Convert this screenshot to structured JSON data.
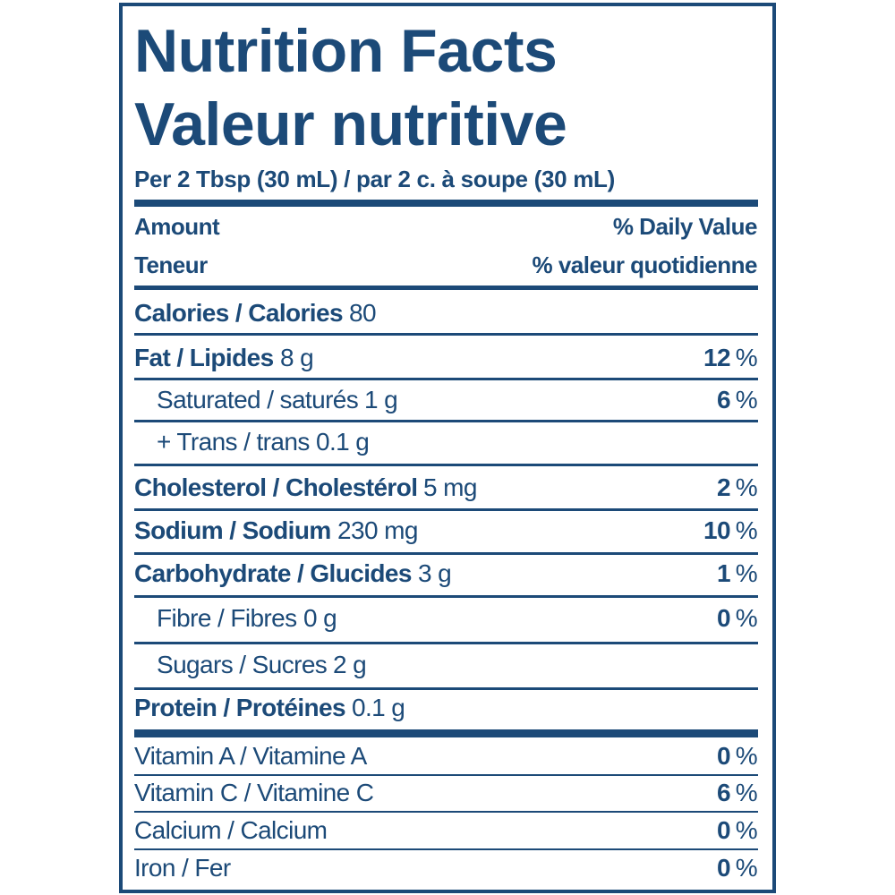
{
  "header": {
    "title": [
      "Nutrition Facts",
      "Valeur nutritive"
    ],
    "serving": "Per 2 Tbsp (30 mL) / par 2 c. à soupe (30 mL)",
    "amount": [
      "Amount",
      "Teneur"
    ],
    "daily_value": [
      "% Daily Value",
      "% valeur quotidienne"
    ]
  },
  "rows": [
    {
      "label": "Calories / Calories",
      "amount": "80",
      "style": "bold"
    },
    {
      "label": "Fat / Lipides",
      "amount": "8 g",
      "style": "bold",
      "dv": "12",
      "sign": "%"
    },
    {
      "label": "Saturated / saturés",
      "amount": "1 g",
      "style": "indent",
      "dv": "6",
      "sign": "%"
    },
    {
      "label": "+ Trans / trans",
      "amount": "0.1 g",
      "style": "indent"
    },
    {
      "label": "Cholesterol / Cholestérol",
      "amount": "5 mg",
      "style": "bold",
      "dv": "2",
      "sign": "%"
    },
    {
      "label": "Sodium / Sodium",
      "amount": "230 mg",
      "style": "bold",
      "dv": "10",
      "sign": "%"
    },
    {
      "label": "Carbohydrate / Glucides",
      "amount": "3 g",
      "style": "bold",
      "dv": "1",
      "sign": "%"
    },
    {
      "label": "Fibre / Fibres",
      "amount": "0 g",
      "style": "indent",
      "dv": "0",
      "sign": "%"
    },
    {
      "label": "Sugars / Sucres",
      "amount": "2 g",
      "style": "indent"
    },
    {
      "label": "Protein / Protéines",
      "amount": "0.1 g",
      "style": "bold"
    },
    {
      "label": "Vitamin A / Vitamine A",
      "style": "plain",
      "dv": "0",
      "sign": "%"
    },
    {
      "label": "Vitamin C / Vitamine C",
      "style": "plain",
      "dv": "6",
      "sign": "%"
    },
    {
      "label": "Calcium / Calcium",
      "style": "plain",
      "dv": "0",
      "sign": "%"
    },
    {
      "label": "Iron / Fer",
      "style": "plain",
      "dv": "0",
      "sign": "%"
    }
  ]
}
